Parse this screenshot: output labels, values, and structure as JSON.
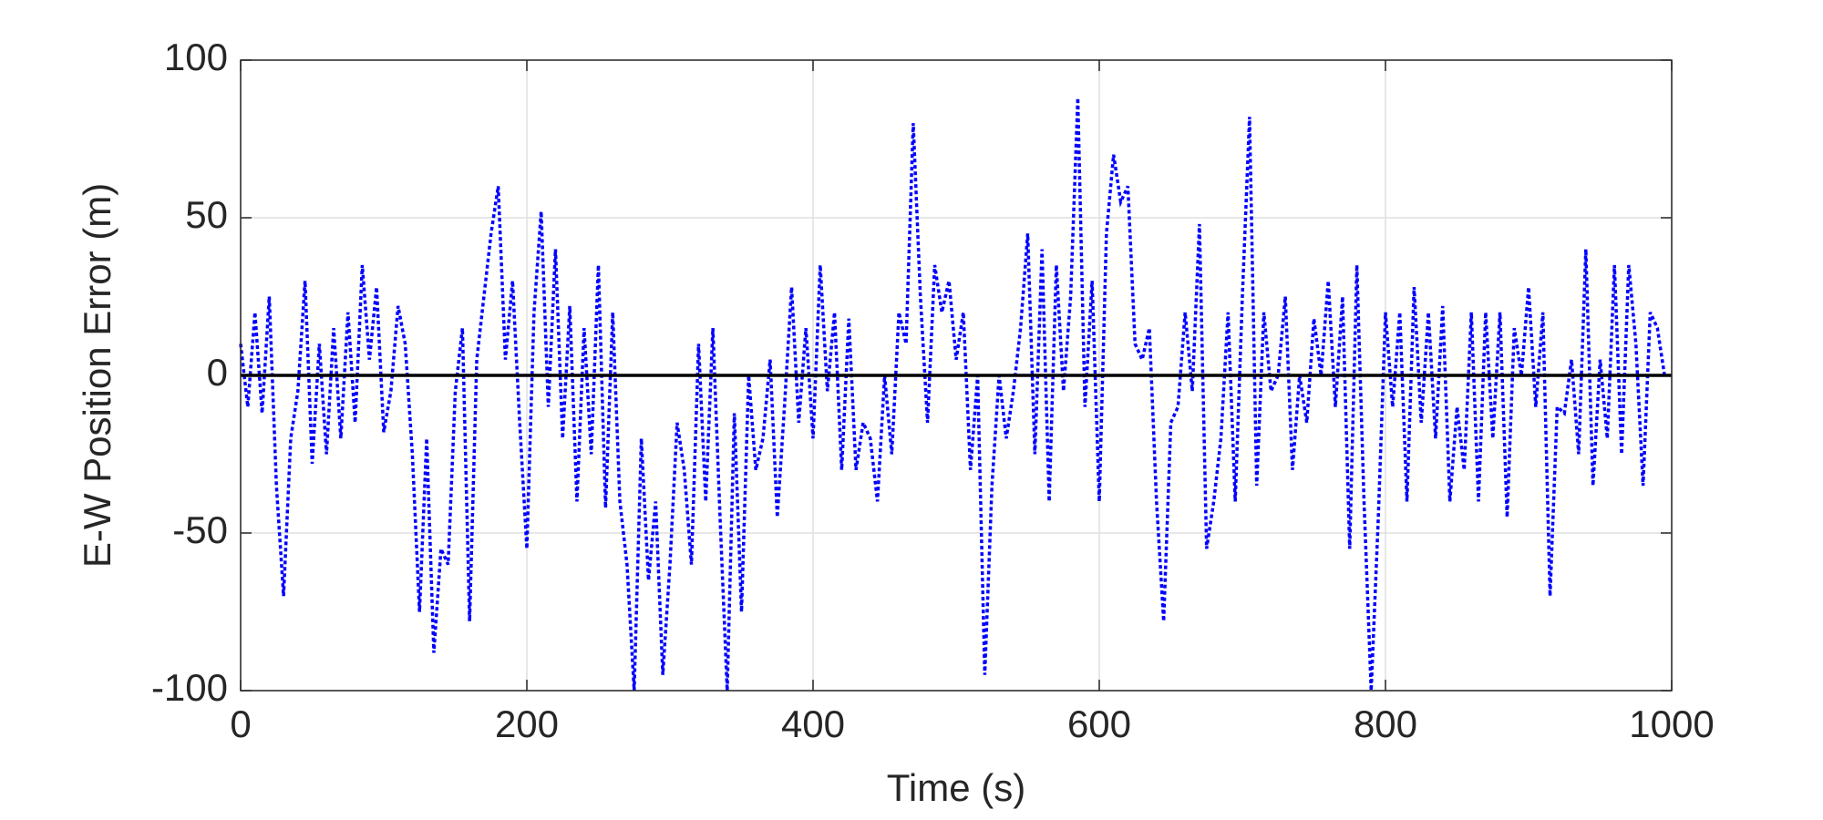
{
  "chart_data": {
    "type": "line",
    "xlabel": "Time (s)",
    "ylabel": "E-W Position Error (m)",
    "x": [
      0,
      5,
      10,
      15,
      20,
      25,
      30,
      35,
      40,
      45,
      50,
      55,
      60,
      65,
      70,
      75,
      80,
      85,
      90,
      95,
      100,
      105,
      110,
      115,
      120,
      125,
      130,
      135,
      140,
      145,
      150,
      155,
      160,
      165,
      170,
      175,
      180,
      185,
      190,
      195,
      200,
      205,
      210,
      215,
      220,
      225,
      230,
      235,
      240,
      245,
      250,
      255,
      260,
      265,
      270,
      275,
      280,
      285,
      290,
      295,
      300,
      305,
      310,
      315,
      320,
      325,
      330,
      335,
      340,
      345,
      350,
      355,
      360,
      365,
      370,
      375,
      380,
      385,
      390,
      395,
      400,
      405,
      410,
      415,
      420,
      425,
      430,
      435,
      440,
      445,
      450,
      455,
      460,
      465,
      470,
      475,
      480,
      485,
      490,
      495,
      500,
      505,
      510,
      515,
      520,
      525,
      530,
      535,
      540,
      545,
      550,
      555,
      560,
      565,
      570,
      575,
      580,
      585,
      590,
      595,
      600,
      605,
      610,
      615,
      620,
      625,
      630,
      635,
      640,
      645,
      650,
      655,
      660,
      665,
      670,
      675,
      680,
      685,
      690,
      695,
      700,
      705,
      710,
      715,
      720,
      725,
      730,
      735,
      740,
      745,
      750,
      755,
      760,
      765,
      770,
      775,
      780,
      785,
      790,
      795,
      800,
      805,
      810,
      815,
      820,
      825,
      830,
      835,
      840,
      845,
      850,
      855,
      860,
      865,
      870,
      875,
      880,
      885,
      890,
      895,
      900,
      905,
      910,
      915,
      920,
      925,
      930,
      935,
      940,
      945,
      950,
      955,
      960,
      965,
      970,
      975,
      980,
      985,
      990,
      995
    ],
    "series": [
      {
        "color": "#0000ff",
        "line_style": "dotted",
        "values": [
          10,
          -10,
          20,
          -12,
          25,
          -35,
          -70,
          -20,
          -5,
          30,
          -28,
          10,
          -25,
          15,
          -20,
          20,
          -15,
          35,
          5,
          28,
          -18,
          -5,
          22,
          10,
          -25,
          -75,
          -20,
          -88,
          -55,
          -60,
          -5,
          15,
          -78,
          5,
          25,
          45,
          60,
          5,
          30,
          -15,
          -55,
          20,
          52,
          -10,
          40,
          -20,
          22,
          -40,
          15,
          -25,
          35,
          -42,
          20,
          -40,
          -60,
          -100,
          -20,
          -65,
          -40,
          -95,
          -60,
          -15,
          -30,
          -60,
          10,
          -40,
          15,
          -45,
          -100,
          -12,
          -75,
          0,
          -30,
          -20,
          5,
          -45,
          -10,
          28,
          -15,
          15,
          -20,
          35,
          -5,
          20,
          -30,
          18,
          -30,
          -15,
          -20,
          -40,
          0,
          -25,
          20,
          10,
          80,
          25,
          -15,
          35,
          20,
          30,
          5,
          20,
          -30,
          0,
          -95,
          -35,
          0,
          -20,
          -5,
          15,
          45,
          -25,
          40,
          -40,
          35,
          -5,
          25,
          88,
          -10,
          30,
          -40,
          45,
          70,
          55,
          60,
          10,
          5,
          15,
          -40,
          -78,
          -15,
          -10,
          20,
          -5,
          48,
          -55,
          -40,
          -20,
          20,
          -40,
          25,
          82,
          -35,
          20,
          -5,
          0,
          25,
          -30,
          0,
          -15,
          18,
          0,
          30,
          -10,
          25,
          -55,
          35,
          -40,
          -100,
          -45,
          20,
          -10,
          20,
          -40,
          28,
          -15,
          20,
          -20,
          22,
          -40,
          -10,
          -30,
          20,
          -40,
          20,
          -20,
          20,
          -45,
          15,
          0,
          28,
          -10,
          20,
          -70,
          -10,
          -12,
          5,
          -25,
          40,
          -35,
          5,
          -20,
          35,
          -25,
          35,
          10,
          -35,
          20,
          15,
          0
        ]
      }
    ],
    "hlines": [
      {
        "value": 0,
        "color": "#000000"
      }
    ],
    "xlim": [
      0,
      1000
    ],
    "xticks": [
      0,
      200,
      400,
      600,
      800,
      1000
    ],
    "ylim": [
      -100,
      100
    ],
    "yticks": [
      -100,
      -50,
      0,
      50,
      100
    ],
    "grid": true
  }
}
